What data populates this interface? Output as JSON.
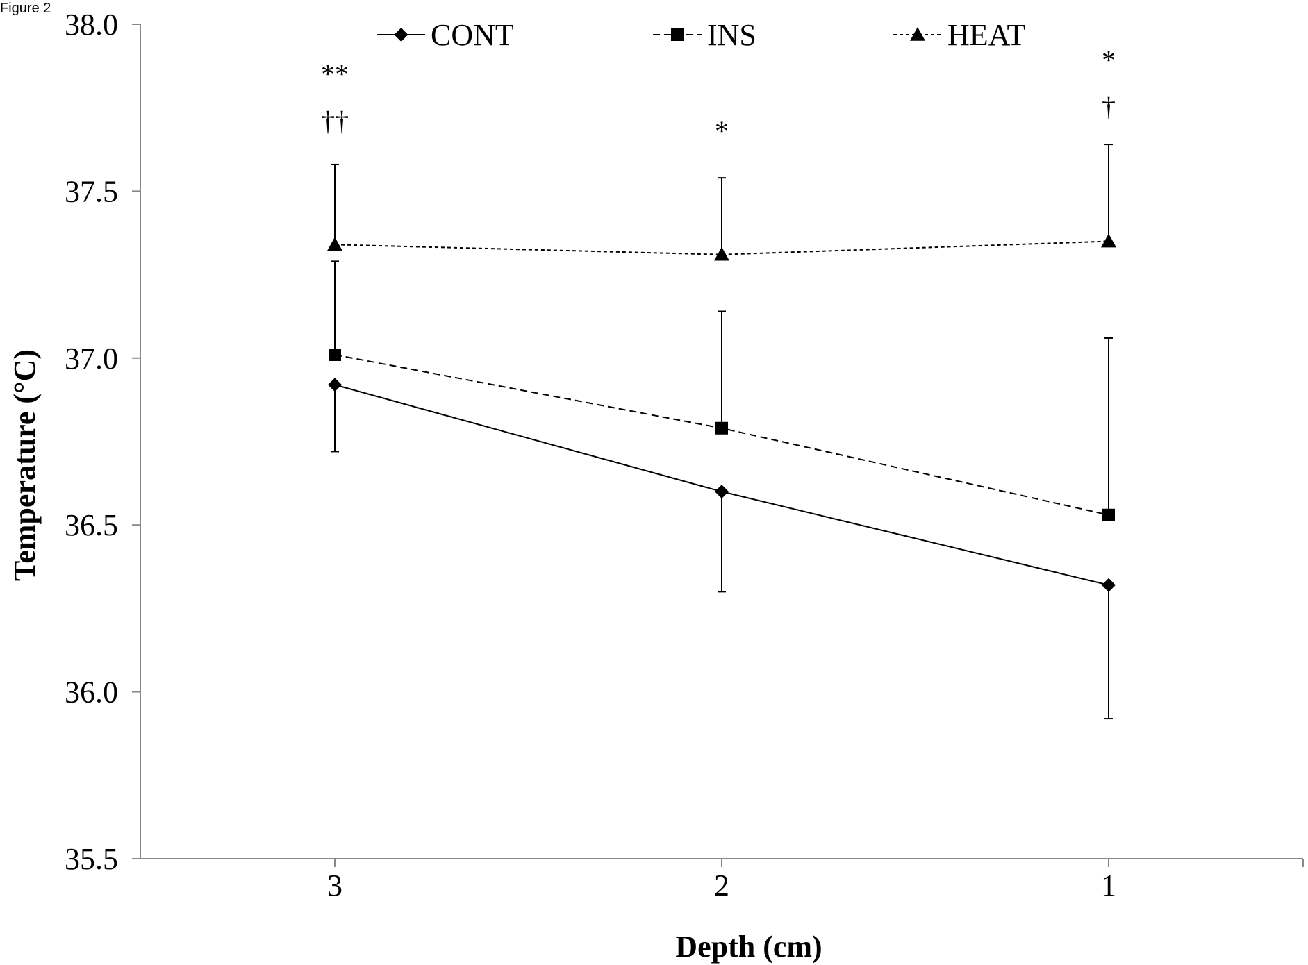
{
  "figure_label": "Figure 2",
  "chart_data": {
    "type": "line",
    "title": "",
    "xlabel": "Depth (cm)",
    "ylabel": "Temperature (°C)",
    "categories": [
      "3",
      "2",
      "1"
    ],
    "ylim": [
      35.5,
      38.0
    ],
    "yticks": [
      "35.5",
      "36.0",
      "36.5",
      "37.0",
      "37.5",
      "38.0"
    ],
    "grid": false,
    "legend_position": "top",
    "series": [
      {
        "name": "CONT",
        "marker": "diamond",
        "line": "solid",
        "values": [
          36.92,
          36.6,
          36.32
        ],
        "error": [
          0.2,
          0.3,
          0.4
        ]
      },
      {
        "name": "INS",
        "marker": "square",
        "line": "dashed",
        "values": [
          37.01,
          36.79,
          36.53
        ],
        "error": [
          0.28,
          0.35,
          0.53
        ]
      },
      {
        "name": "HEAT",
        "marker": "triangle",
        "line": "dotted",
        "values": [
          37.34,
          37.31,
          37.35
        ],
        "error": [
          0.24,
          0.23,
          0.29
        ]
      }
    ],
    "annotations": [
      {
        "category": "3",
        "lines": [
          "**",
          "††"
        ]
      },
      {
        "category": "2",
        "lines": [
          "*"
        ]
      },
      {
        "category": "1",
        "lines": [
          "*",
          "†"
        ]
      }
    ]
  }
}
